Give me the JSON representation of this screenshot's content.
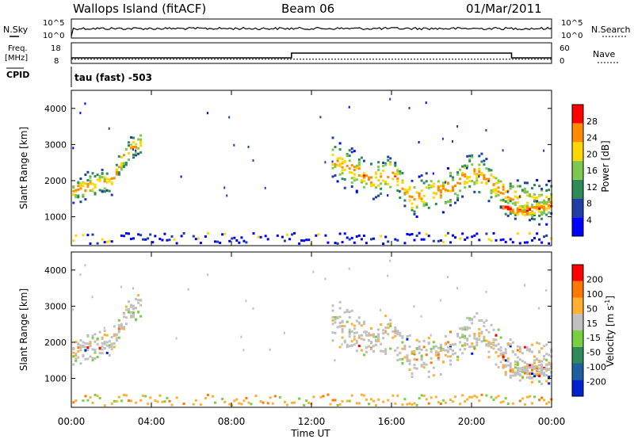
{
  "header": {
    "station": "Wallops Island (fitACF)",
    "beam": "Beam 06",
    "date": "01/Mar/2011"
  },
  "noise_panel": {
    "left_label": "N.Sky",
    "right_label": "N.Search",
    "ytick_top": "10^5",
    "ytick_bottom": "10^0"
  },
  "freq_panel": {
    "label_line1": "Freq.",
    "label_line2": "[MHz]",
    "left_ticks": [
      "18",
      "8"
    ],
    "right_label": "Nave",
    "right_ticks": [
      "60",
      "0"
    ]
  },
  "cpid_panel": {
    "label": "CPID",
    "program": "tau (fast) -503"
  },
  "time_axis": {
    "label": "Time UT",
    "ticks": [
      "00:00",
      "04:00",
      "08:00",
      "12:00",
      "16:00",
      "20:00",
      "00:00"
    ]
  },
  "power_panel": {
    "ylabel": "Slant Range [km]",
    "yticks": [
      "1000",
      "2000",
      "3000",
      "4000"
    ],
    "colorbar_label": "Power [dB]",
    "colorbar_ticks": [
      "4",
      "8",
      "12",
      "16",
      "20",
      "24",
      "28"
    ],
    "colors": [
      "#0000ff",
      "#1f3fa6",
      "#2e8b57",
      "#7ec850",
      "#ffd700",
      "#ff8c00",
      "#ff0000"
    ]
  },
  "velocity_panel": {
    "ylabel": "Slant Range [km]",
    "yticks": [
      "1000",
      "2000",
      "3000",
      "4000"
    ],
    "colorbar_label": "Velocity [m s^-1]",
    "colorbar_ticks": [
      "200",
      "100",
      "50",
      "15",
      "-15",
      "-50",
      "-100",
      "-200"
    ],
    "colors": [
      "#0022cc",
      "#1f5fa0",
      "#2e8b57",
      "#78d040",
      "#c0c0c0",
      "#ffb030",
      "#ff7800",
      "#ff0000"
    ]
  },
  "chart_data": {
    "type": "heatmap",
    "x_unit": "hours UT",
    "xlim": [
      0,
      24
    ],
    "ylim": [
      200,
      4500
    ],
    "power_bands": [
      {
        "t": [
          0,
          1,
          2,
          2.5,
          3,
          3.5
        ],
        "range": [
          1700,
          1900,
          2000,
          2600,
          2900,
          3100
        ],
        "thickness": 250,
        "level": 5
      },
      {
        "t": [
          13,
          14,
          15,
          16,
          17,
          18,
          19,
          20,
          21,
          22,
          23,
          24
        ],
        "range": [
          2600,
          2300,
          2000,
          2200,
          1500,
          1700,
          1800,
          2300,
          1900,
          1500,
          1400,
          1400
        ],
        "thickness": 400,
        "level": 5
      },
      {
        "t": [
          21.5,
          22.5,
          23.5,
          24
        ],
        "range": [
          1300,
          1150,
          1250,
          1300
        ],
        "thickness": 150,
        "level": 6
      }
    ],
    "freq_mhz": [
      {
        "t": 0,
        "v": 10.5
      },
      {
        "t": 11,
        "v": 10.5
      },
      {
        "t": 11,
        "v": 13.5
      },
      {
        "t": 22,
        "v": 13.5
      },
      {
        "t": 22,
        "v": 10.5
      },
      {
        "t": 24,
        "v": 10.5
      }
    ],
    "nave": [
      {
        "t": 0,
        "v": 10
      },
      {
        "t": 24,
        "v": 10
      }
    ]
  }
}
